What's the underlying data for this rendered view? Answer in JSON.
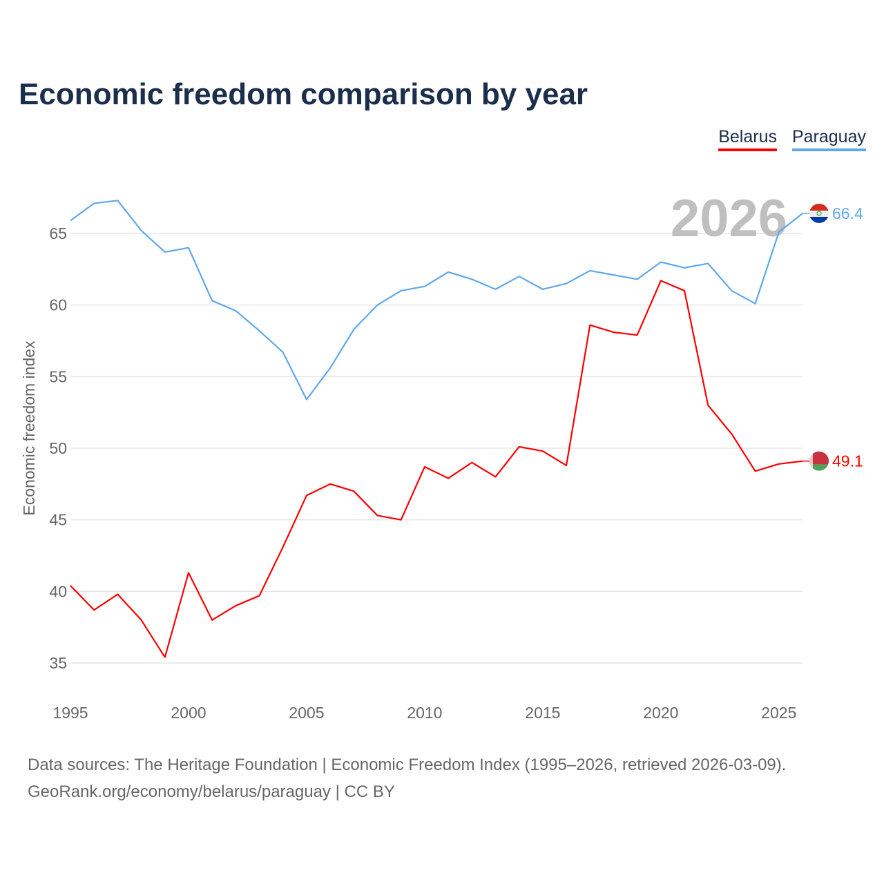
{
  "title": "Economic freedom comparison by year",
  "legend": [
    {
      "label": "Belarus",
      "color": "#ff0000"
    },
    {
      "label": "Paraguay",
      "color": "#5ca8ec"
    }
  ],
  "source_line1": "Data sources: The Heritage Foundation | Economic Freedom Index (1995–2026, retrieved 2026-03-09).",
  "source_line2": "GeoRank.org/economy/belarus/paraguay | CC BY",
  "chart_data": {
    "type": "line",
    "title": "Economic freedom comparison by year",
    "ylabel": "Economic freedom index",
    "xlabel": "",
    "year_watermark": "2026",
    "x": [
      1995,
      1996,
      1997,
      1998,
      1999,
      2000,
      2001,
      2002,
      2003,
      2004,
      2005,
      2006,
      2007,
      2008,
      2009,
      2010,
      2011,
      2012,
      2013,
      2014,
      2015,
      2016,
      2017,
      2018,
      2019,
      2020,
      2021,
      2022,
      2023,
      2024,
      2025,
      2026
    ],
    "xticks": [
      "1995",
      "2000",
      "2005",
      "2010",
      "2015",
      "2020",
      "2025"
    ],
    "yticks": [
      "35",
      "40",
      "45",
      "50",
      "55",
      "60",
      "65"
    ],
    "xlim": [
      1995,
      2026
    ],
    "ylim": [
      35,
      65
    ],
    "grid": true,
    "legend_position": "top-right",
    "series": [
      {
        "name": "Belarus",
        "color": "#ff0000",
        "end_label": "49.1",
        "values": [
          40.4,
          38.7,
          39.8,
          38.0,
          35.4,
          41.3,
          38.0,
          39.0,
          39.7,
          43.1,
          46.7,
          47.5,
          47.0,
          45.3,
          45.0,
          48.7,
          47.9,
          49.0,
          48.0,
          50.1,
          49.8,
          48.8,
          58.6,
          58.1,
          57.9,
          61.7,
          61.0,
          53.0,
          51.0,
          48.4,
          48.9,
          49.1
        ]
      },
      {
        "name": "Paraguay",
        "color": "#5ca8ec",
        "end_label": "66.4",
        "values": [
          65.9,
          67.1,
          67.3,
          65.2,
          63.7,
          64.0,
          60.3,
          59.6,
          58.2,
          56.7,
          53.4,
          55.6,
          58.3,
          60.0,
          61.0,
          61.3,
          62.3,
          61.8,
          61.1,
          62.0,
          61.1,
          61.5,
          62.4,
          62.1,
          61.8,
          63.0,
          62.6,
          62.9,
          61.0,
          60.1,
          65.1,
          66.4
        ]
      }
    ]
  }
}
